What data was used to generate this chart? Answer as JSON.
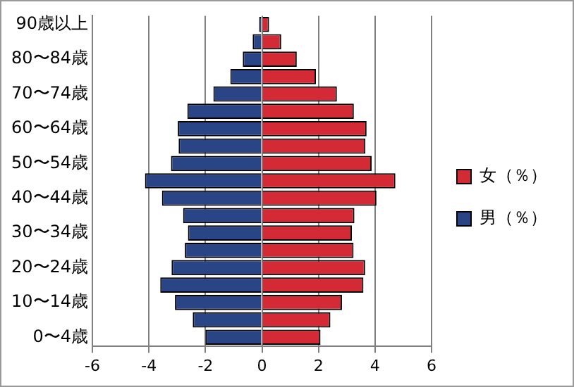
{
  "chart_data": {
    "type": "bar",
    "orientation": "horizontal",
    "stacked": true,
    "categories": [
      "90歳以上",
      null,
      "80〜84歳",
      null,
      "70〜74歳",
      null,
      "60〜64歳",
      null,
      "50〜54歳",
      null,
      "40〜44歳",
      null,
      "30〜34歳",
      null,
      "20〜24歳",
      null,
      "10〜14歳",
      null,
      "0〜4歳"
    ],
    "series": [
      {
        "name": "女（％）",
        "color": "#d42a35",
        "values": [
          0.25,
          0.68,
          1.23,
          1.91,
          2.65,
          3.25,
          3.7,
          3.66,
          3.88,
          4.72,
          4.05,
          3.27,
          3.18,
          3.24,
          3.65,
          3.59,
          2.83,
          2.42,
          2.07
        ]
      },
      {
        "name": "男（％）",
        "color": "#2a4585",
        "values": [
          -0.1,
          -0.33,
          -0.68,
          -1.12,
          -1.72,
          -2.64,
          -2.98,
          -2.95,
          -3.22,
          -4.14,
          -3.54,
          -2.79,
          -2.62,
          -2.73,
          -3.2,
          -3.6,
          -3.08,
          -2.45,
          -2.0
        ]
      }
    ],
    "xlim": [
      -6,
      6
    ],
    "xticks": [
      -6,
      -4,
      -2,
      0,
      2,
      4,
      6
    ],
    "grid": "x",
    "legend": "right"
  }
}
